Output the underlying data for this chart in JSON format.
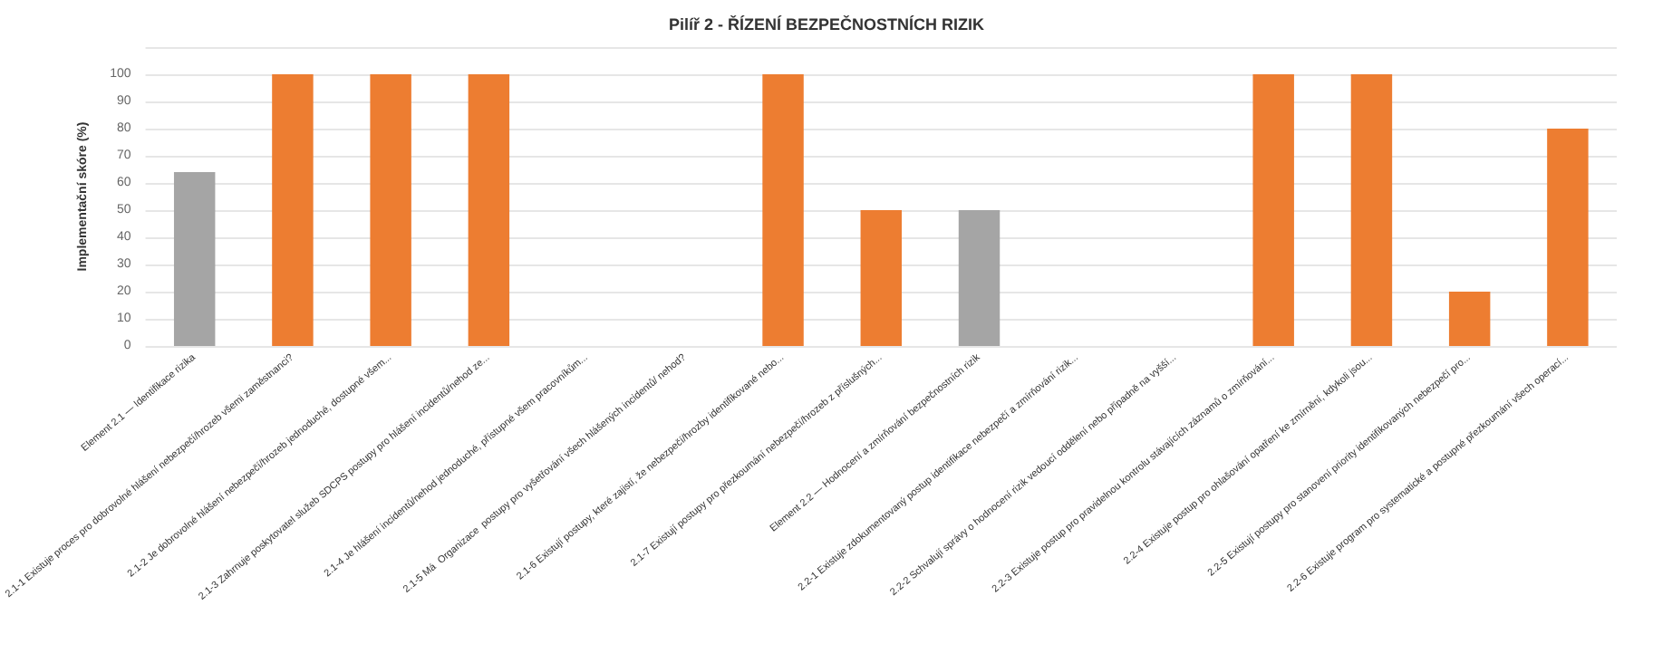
{
  "chart_data": {
    "type": "bar",
    "title": "Pilíř 2 - ŘÍZENÍ BEZPEČNOSTNÍCH RIZIK",
    "ylabel": "Implementační skóre (%)",
    "categories": [
      "Element 2.1 — Identifikace rizika",
      "2.1-1 Existuje proces pro dobrovolné hlášení nebezpečí/hrozeb všemi zaměstnanci?",
      "2.1-2 Je dobrovolné hlášení nebezpečí/hrozeb jednoduché, dostupné všem...",
      "2.1-3 Zahrnuje poskytovatel služeb SDCPS postupy pro hlášení incidentů/nehod ze...",
      "2.1-4 Je hlášení incidentů/nehod jednoduché, přístupné všem pracovníkům...",
      "2.1-5 Má  Organizace  postupy pro vyšetřování všech hlášených incidentů/ nehod?",
      "2.1-6 Existují postupy, které zajistí, že nebezpečí/hrozby identifikované nebo...",
      "2.1-7 Existují postupy pro přezkoumání nebezpečí/hrozeb z příslušných...",
      "Element 2.2 — Hodnocení a zmírňování bezpečnostních rizik",
      "2.2-1 Existuje zdokumentovaný postup identifikace nebezpečí a zmírňování rizik...",
      "2.2-2 Schvalují správy o hodnocení rizik vedoucí oddělení nebo případně na vyšší...",
      "2.2-3 Existuje postup pro pravidelnou kontrolu stávajících záznamů o zmírňování...",
      "2.2-4 Existuje postup pro ohlašování opatření ke zmírnění, kdykoli jsou...",
      "2.2-5 Existují postupy pro stanovení priority identifikovaných nebezpečí pro...",
      "2.2-6 Existuje program pro systematické a postupné přezkoumání všech operací..."
    ],
    "values": [
      64,
      100,
      100,
      100,
      0,
      0,
      100,
      50,
      50,
      0,
      0,
      100,
      100,
      20,
      80
    ],
    "colors": [
      "#a5a5a5",
      "#ed7d31",
      "#ed7d31",
      "#ed7d31",
      "#ed7d31",
      "#ed7d31",
      "#ed7d31",
      "#ed7d31",
      "#a5a5a5",
      "#ed7d31",
      "#ed7d31",
      "#ed7d31",
      "#ed7d31",
      "#ed7d31",
      "#ed7d31"
    ],
    "ylim": [
      0,
      110
    ],
    "yticks": [
      0,
      10,
      20,
      30,
      40,
      50,
      60,
      70,
      80,
      90,
      100,
      {
        "value": 110,
        "label": null
      }
    ],
    "grid": "y"
  }
}
